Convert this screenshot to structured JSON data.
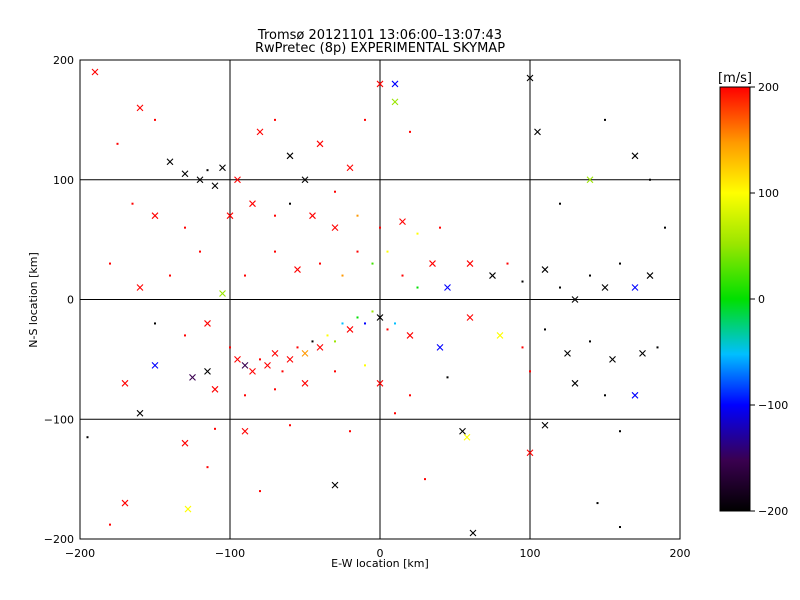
{
  "chart_data": {
    "type": "scatter",
    "title_line1": "Tromsø 20121101 13:06:00–13:07:43",
    "title_line2": "RwPretec (8p) EXPERIMENTAL SKYMAP",
    "xlabel": "E-W location [km]",
    "ylabel": "N-S location [km]",
    "xlim": [
      -200,
      200
    ],
    "ylim": [
      -200,
      200
    ],
    "xticks": [
      -200,
      -100,
      0,
      100,
      200
    ],
    "yticks": [
      -200,
      -100,
      0,
      100,
      200
    ],
    "xtick_labels": [
      "−200",
      "−100",
      "0",
      "100",
      "200"
    ],
    "ytick_labels": [
      "−200",
      "−100",
      "0",
      "100",
      "200"
    ],
    "grid": true,
    "colorbar": {
      "label": "[m/s]",
      "range": [
        -200,
        200
      ],
      "ticks": [
        200,
        100,
        0,
        -100,
        -200
      ],
      "tick_labels": [
        "200",
        "100",
        "0",
        "−100",
        "−200"
      ],
      "colormap": "black-purple-blue-cyan-green-yellow-red"
    },
    "markers": {
      "dot": "small dot",
      "cross": "x"
    },
    "points": [
      {
        "x": -190,
        "y": 190,
        "v": 200,
        "m": "cross"
      },
      {
        "x": -175,
        "y": 130,
        "v": 200,
        "m": "dot"
      },
      {
        "x": -160,
        "y": 160,
        "v": 200,
        "m": "cross"
      },
      {
        "x": -150,
        "y": 150,
        "v": 200,
        "m": "dot"
      },
      {
        "x": -140,
        "y": 115,
        "v": -200,
        "m": "cross"
      },
      {
        "x": -130,
        "y": 105,
        "v": -200,
        "m": "cross"
      },
      {
        "x": -120,
        "y": 100,
        "v": -200,
        "m": "cross"
      },
      {
        "x": -110,
        "y": 95,
        "v": -200,
        "m": "cross"
      },
      {
        "x": -115,
        "y": 108,
        "v": -200,
        "m": "dot"
      },
      {
        "x": -105,
        "y": 110,
        "v": -200,
        "m": "cross"
      },
      {
        "x": -95,
        "y": 100,
        "v": 200,
        "m": "cross"
      },
      {
        "x": -80,
        "y": 140,
        "v": 200,
        "m": "cross"
      },
      {
        "x": -70,
        "y": 150,
        "v": 200,
        "m": "dot"
      },
      {
        "x": -60,
        "y": 120,
        "v": -200,
        "m": "cross"
      },
      {
        "x": -50,
        "y": 100,
        "v": -200,
        "m": "cross"
      },
      {
        "x": -40,
        "y": 130,
        "v": 200,
        "m": "cross"
      },
      {
        "x": -30,
        "y": 90,
        "v": 200,
        "m": "dot"
      },
      {
        "x": -20,
        "y": 110,
        "v": 200,
        "m": "cross"
      },
      {
        "x": -10,
        "y": 150,
        "v": 200,
        "m": "dot"
      },
      {
        "x": 0,
        "y": 180,
        "v": 200,
        "m": "cross"
      },
      {
        "x": 10,
        "y": 180,
        "v": -100,
        "m": "cross"
      },
      {
        "x": 10,
        "y": 165,
        "v": 50,
        "m": "cross"
      },
      {
        "x": 20,
        "y": 140,
        "v": 200,
        "m": "dot"
      },
      {
        "x": -165,
        "y": 80,
        "v": 200,
        "m": "dot"
      },
      {
        "x": -150,
        "y": 70,
        "v": 200,
        "m": "cross"
      },
      {
        "x": -130,
        "y": 60,
        "v": 200,
        "m": "dot"
      },
      {
        "x": -100,
        "y": 70,
        "v": 200,
        "m": "cross"
      },
      {
        "x": -85,
        "y": 80,
        "v": 200,
        "m": "cross"
      },
      {
        "x": -70,
        "y": 70,
        "v": 200,
        "m": "dot"
      },
      {
        "x": -60,
        "y": 80,
        "v": -200,
        "m": "dot"
      },
      {
        "x": -45,
        "y": 70,
        "v": 200,
        "m": "cross"
      },
      {
        "x": -30,
        "y": 60,
        "v": 200,
        "m": "cross"
      },
      {
        "x": -15,
        "y": 70,
        "v": 150,
        "m": "dot"
      },
      {
        "x": 0,
        "y": 60,
        "v": 200,
        "m": "dot"
      },
      {
        "x": 15,
        "y": 65,
        "v": 200,
        "m": "cross"
      },
      {
        "x": 25,
        "y": 55,
        "v": 100,
        "m": "dot"
      },
      {
        "x": 40,
        "y": 60,
        "v": 200,
        "m": "dot"
      },
      {
        "x": -180,
        "y": 30,
        "v": 200,
        "m": "dot"
      },
      {
        "x": -160,
        "y": 10,
        "v": 200,
        "m": "cross"
      },
      {
        "x": -140,
        "y": 20,
        "v": 200,
        "m": "dot"
      },
      {
        "x": -120,
        "y": 40,
        "v": 200,
        "m": "dot"
      },
      {
        "x": -105,
        "y": 5,
        "v": 50,
        "m": "cross"
      },
      {
        "x": -90,
        "y": 20,
        "v": 200,
        "m": "dot"
      },
      {
        "x": -70,
        "y": 40,
        "v": 200,
        "m": "dot"
      },
      {
        "x": -55,
        "y": 25,
        "v": 200,
        "m": "cross"
      },
      {
        "x": -40,
        "y": 30,
        "v": 200,
        "m": "dot"
      },
      {
        "x": -25,
        "y": 20,
        "v": 150,
        "m": "dot"
      },
      {
        "x": -15,
        "y": 40,
        "v": 200,
        "m": "dot"
      },
      {
        "x": -5,
        "y": 30,
        "v": 20,
        "m": "dot"
      },
      {
        "x": 5,
        "y": 40,
        "v": 100,
        "m": "dot"
      },
      {
        "x": 15,
        "y": 20,
        "v": 200,
        "m": "dot"
      },
      {
        "x": 25,
        "y": 10,
        "v": 0,
        "m": "dot"
      },
      {
        "x": 35,
        "y": 30,
        "v": 200,
        "m": "cross"
      },
      {
        "x": 45,
        "y": 10,
        "v": -100,
        "m": "cross"
      },
      {
        "x": 60,
        "y": 30,
        "v": 200,
        "m": "cross"
      },
      {
        "x": 75,
        "y": 20,
        "v": -200,
        "m": "cross"
      },
      {
        "x": 85,
        "y": 30,
        "v": 200,
        "m": "dot"
      },
      {
        "x": 95,
        "y": 15,
        "v": -200,
        "m": "dot"
      },
      {
        "x": 110,
        "y": 25,
        "v": -200,
        "m": "cross"
      },
      {
        "x": 120,
        "y": 10,
        "v": -200,
        "m": "dot"
      },
      {
        "x": 130,
        "y": 0,
        "v": -200,
        "m": "cross"
      },
      {
        "x": 140,
        "y": 20,
        "v": -200,
        "m": "dot"
      },
      {
        "x": 150,
        "y": 10,
        "v": -200,
        "m": "cross"
      },
      {
        "x": 160,
        "y": 30,
        "v": -200,
        "m": "dot"
      },
      {
        "x": 170,
        "y": 10,
        "v": -100,
        "m": "cross"
      },
      {
        "x": 180,
        "y": 20,
        "v": -200,
        "m": "cross"
      },
      {
        "x": -150,
        "y": -20,
        "v": -200,
        "m": "dot"
      },
      {
        "x": -130,
        "y": -30,
        "v": 200,
        "m": "dot"
      },
      {
        "x": -115,
        "y": -20,
        "v": 200,
        "m": "cross"
      },
      {
        "x": -100,
        "y": -40,
        "v": 200,
        "m": "dot"
      },
      {
        "x": -95,
        "y": -50,
        "v": 200,
        "m": "cross"
      },
      {
        "x": -90,
        "y": -55,
        "v": -150,
        "m": "cross"
      },
      {
        "x": -85,
        "y": -60,
        "v": 200,
        "m": "cross"
      },
      {
        "x": -80,
        "y": -50,
        "v": 200,
        "m": "dot"
      },
      {
        "x": -75,
        "y": -55,
        "v": 200,
        "m": "cross"
      },
      {
        "x": -70,
        "y": -45,
        "v": 200,
        "m": "cross"
      },
      {
        "x": -65,
        "y": -60,
        "v": 200,
        "m": "dot"
      },
      {
        "x": -60,
        "y": -50,
        "v": 200,
        "m": "cross"
      },
      {
        "x": -55,
        "y": -40,
        "v": 200,
        "m": "dot"
      },
      {
        "x": -50,
        "y": -45,
        "v": 150,
        "m": "cross"
      },
      {
        "x": -45,
        "y": -35,
        "v": -200,
        "m": "dot"
      },
      {
        "x": -40,
        "y": -40,
        "v": 200,
        "m": "cross"
      },
      {
        "x": -35,
        "y": -30,
        "v": 100,
        "m": "dot"
      },
      {
        "x": -30,
        "y": -35,
        "v": 50,
        "m": "dot"
      },
      {
        "x": -25,
        "y": -20,
        "v": -50,
        "m": "dot"
      },
      {
        "x": -20,
        "y": -25,
        "v": 200,
        "m": "cross"
      },
      {
        "x": -15,
        "y": -15,
        "v": 0,
        "m": "dot"
      },
      {
        "x": -10,
        "y": -20,
        "v": -100,
        "m": "dot"
      },
      {
        "x": -5,
        "y": -10,
        "v": 50,
        "m": "dot"
      },
      {
        "x": 0,
        "y": -15,
        "v": -200,
        "m": "cross"
      },
      {
        "x": 5,
        "y": -25,
        "v": 200,
        "m": "dot"
      },
      {
        "x": 10,
        "y": -20,
        "v": -50,
        "m": "dot"
      },
      {
        "x": 20,
        "y": -30,
        "v": 200,
        "m": "cross"
      },
      {
        "x": 40,
        "y": -40,
        "v": -100,
        "m": "cross"
      },
      {
        "x": 60,
        "y": -15,
        "v": 200,
        "m": "cross"
      },
      {
        "x": 80,
        "y": -30,
        "v": 100,
        "m": "cross"
      },
      {
        "x": 95,
        "y": -40,
        "v": 200,
        "m": "dot"
      },
      {
        "x": 110,
        "y": -25,
        "v": -200,
        "m": "dot"
      },
      {
        "x": 125,
        "y": -45,
        "v": -200,
        "m": "cross"
      },
      {
        "x": 140,
        "y": -35,
        "v": -200,
        "m": "dot"
      },
      {
        "x": 155,
        "y": -50,
        "v": -200,
        "m": "cross"
      },
      {
        "x": 175,
        "y": -45,
        "v": -200,
        "m": "cross"
      },
      {
        "x": 185,
        "y": -40,
        "v": -200,
        "m": "dot"
      },
      {
        "x": -170,
        "y": -70,
        "v": 200,
        "m": "cross"
      },
      {
        "x": -150,
        "y": -55,
        "v": -100,
        "m": "cross"
      },
      {
        "x": -125,
        "y": -65,
        "v": -150,
        "m": "cross"
      },
      {
        "x": -115,
        "y": -60,
        "v": -200,
        "m": "cross"
      },
      {
        "x": -110,
        "y": -75,
        "v": 200,
        "m": "cross"
      },
      {
        "x": -90,
        "y": -80,
        "v": 200,
        "m": "dot"
      },
      {
        "x": -70,
        "y": -75,
        "v": 200,
        "m": "dot"
      },
      {
        "x": -50,
        "y": -70,
        "v": 200,
        "m": "cross"
      },
      {
        "x": -30,
        "y": -60,
        "v": 200,
        "m": "dot"
      },
      {
        "x": -10,
        "y": -55,
        "v": 100,
        "m": "dot"
      },
      {
        "x": 0,
        "y": -70,
        "v": 200,
        "m": "cross"
      },
      {
        "x": 20,
        "y": -80,
        "v": 200,
        "m": "dot"
      },
      {
        "x": 45,
        "y": -65,
        "v": -200,
        "m": "dot"
      },
      {
        "x": 100,
        "y": -60,
        "v": 200,
        "m": "dot"
      },
      {
        "x": 130,
        "y": -70,
        "v": -200,
        "m": "cross"
      },
      {
        "x": 150,
        "y": -80,
        "v": -200,
        "m": "dot"
      },
      {
        "x": 170,
        "y": -80,
        "v": -100,
        "m": "cross"
      },
      {
        "x": -160,
        "y": -95,
        "v": -200,
        "m": "cross"
      },
      {
        "x": -110,
        "y": -108,
        "v": 200,
        "m": "dot"
      },
      {
        "x": -90,
        "y": -110,
        "v": 200,
        "m": "cross"
      },
      {
        "x": -60,
        "y": -105,
        "v": 200,
        "m": "dot"
      },
      {
        "x": -20,
        "y": -110,
        "v": 200,
        "m": "dot"
      },
      {
        "x": 10,
        "y": -95,
        "v": 200,
        "m": "dot"
      },
      {
        "x": 55,
        "y": -110,
        "v": -200,
        "m": "cross"
      },
      {
        "x": 58,
        "y": -115,
        "v": 100,
        "m": "cross"
      },
      {
        "x": 110,
        "y": -105,
        "v": -200,
        "m": "cross"
      },
      {
        "x": 160,
        "y": -110,
        "v": -200,
        "m": "dot"
      },
      {
        "x": -195,
        "y": -115,
        "v": -200,
        "m": "dot"
      },
      {
        "x": -130,
        "y": -120,
        "v": 200,
        "m": "cross"
      },
      {
        "x": -115,
        "y": -140,
        "v": 200,
        "m": "dot"
      },
      {
        "x": -80,
        "y": -160,
        "v": 200,
        "m": "dot"
      },
      {
        "x": -30,
        "y": -155,
        "v": -200,
        "m": "cross"
      },
      {
        "x": 30,
        "y": -150,
        "v": 200,
        "m": "dot"
      },
      {
        "x": 100,
        "y": -128,
        "v": 200,
        "m": "cross"
      },
      {
        "x": 145,
        "y": -170,
        "v": -200,
        "m": "dot"
      },
      {
        "x": -170,
        "y": -170,
        "v": 200,
        "m": "cross"
      },
      {
        "x": -180,
        "y": -188,
        "v": 200,
        "m": "dot"
      },
      {
        "x": -128,
        "y": -175,
        "v": 100,
        "m": "cross"
      },
      {
        "x": 62,
        "y": -195,
        "v": -200,
        "m": "cross"
      },
      {
        "x": 160,
        "y": -190,
        "v": -200,
        "m": "dot"
      },
      {
        "x": 100,
        "y": 185,
        "v": -200,
        "m": "cross"
      },
      {
        "x": 150,
        "y": 150,
        "v": -200,
        "m": "dot"
      },
      {
        "x": 170,
        "y": 120,
        "v": -200,
        "m": "cross"
      },
      {
        "x": 180,
        "y": 100,
        "v": -200,
        "m": "dot"
      },
      {
        "x": 140,
        "y": 100,
        "v": 50,
        "m": "cross"
      },
      {
        "x": 120,
        "y": 80,
        "v": -200,
        "m": "dot"
      },
      {
        "x": 105,
        "y": 140,
        "v": -200,
        "m": "cross"
      },
      {
        "x": 190,
        "y": 60,
        "v": -200,
        "m": "dot"
      }
    ]
  }
}
